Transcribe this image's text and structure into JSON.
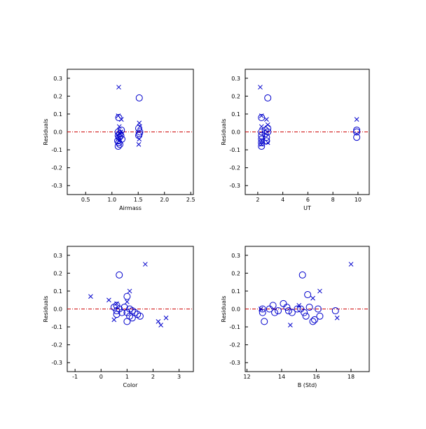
{
  "colors": {
    "marker": "#0000cc",
    "zero_line": "#cc0000",
    "axis": "#000000"
  },
  "chart_data": [
    {
      "type": "scatter",
      "xlabel": "Airmass",
      "ylabel": "Residuals",
      "xlim": [
        0.15,
        2.55
      ],
      "ylim": [
        -0.35,
        0.35
      ],
      "xticks": [
        0.5,
        1.0,
        1.5,
        2.0,
        2.5
      ],
      "xtick_labels": [
        "0.5",
        "1.0",
        "1.5",
        "2.0",
        "2.5"
      ],
      "yticks": [
        -0.3,
        -0.2,
        -0.1,
        0.0,
        0.1,
        0.2,
        0.3
      ],
      "ytick_labels": [
        "-0.3",
        "-0.2",
        "-0.1",
        "0.0",
        "0.1",
        "0.2",
        "0.3"
      ],
      "reference_line_y": 0.0,
      "series": [
        {
          "marker": "circle",
          "points": [
            [
              1.13,
              0.08
            ],
            [
              1.12,
              0.0
            ],
            [
              1.15,
              -0.01
            ],
            [
              1.12,
              -0.02
            ],
            [
              1.14,
              -0.03
            ],
            [
              1.11,
              -0.05
            ],
            [
              1.13,
              -0.06
            ],
            [
              1.15,
              -0.07
            ],
            [
              1.12,
              -0.08
            ],
            [
              1.18,
              0.01
            ],
            [
              1.17,
              -0.02
            ],
            [
              1.19,
              -0.04
            ],
            [
              1.52,
              0.19
            ],
            [
              1.51,
              0.02
            ],
            [
              1.53,
              0.0
            ],
            [
              1.52,
              -0.01
            ],
            [
              1.51,
              -0.02
            ]
          ]
        },
        {
          "marker": "x",
          "points": [
            [
              1.13,
              0.25
            ],
            [
              1.12,
              0.09
            ],
            [
              1.14,
              0.03
            ],
            [
              1.16,
              -0.01
            ],
            [
              1.12,
              -0.03
            ],
            [
              1.13,
              -0.05
            ],
            [
              1.18,
              0.07
            ],
            [
              1.17,
              0.0
            ],
            [
              1.52,
              0.05
            ],
            [
              1.53,
              0.03
            ],
            [
              1.52,
              -0.04
            ],
            [
              1.51,
              -0.07
            ]
          ]
        }
      ]
    },
    {
      "type": "scatter",
      "xlabel": "UT",
      "ylabel": "Residuals",
      "xlim": [
        1.0,
        10.9
      ],
      "ylim": [
        -0.35,
        0.35
      ],
      "xticks": [
        2,
        4,
        6,
        8,
        10
      ],
      "xtick_labels": [
        "2",
        "4",
        "6",
        "8",
        "10"
      ],
      "yticks": [
        -0.3,
        -0.2,
        -0.1,
        0.0,
        0.1,
        0.2,
        0.3
      ],
      "ytick_labels": [
        "-0.3",
        "-0.2",
        "-0.1",
        "0.0",
        "0.1",
        "0.2",
        "0.3"
      ],
      "reference_line_y": 0.0,
      "series": [
        {
          "marker": "circle",
          "points": [
            [
              2.3,
              0.08
            ],
            [
              2.3,
              0.0
            ],
            [
              2.3,
              -0.02
            ],
            [
              2.3,
              -0.04
            ],
            [
              2.3,
              -0.06
            ],
            [
              2.3,
              -0.08
            ],
            [
              2.6,
              0.01
            ],
            [
              2.6,
              -0.01
            ],
            [
              2.7,
              -0.03
            ],
            [
              2.7,
              -0.05
            ],
            [
              2.8,
              0.19
            ],
            [
              2.8,
              0.02
            ],
            [
              2.8,
              0.0
            ],
            [
              9.9,
              0.01
            ],
            [
              9.9,
              0.0
            ],
            [
              9.9,
              -0.03
            ]
          ]
        },
        {
          "marker": "x",
          "points": [
            [
              2.2,
              0.25
            ],
            [
              2.3,
              0.09
            ],
            [
              2.3,
              0.03
            ],
            [
              2.3,
              -0.05
            ],
            [
              2.3,
              -0.07
            ],
            [
              2.7,
              0.07
            ],
            [
              2.8,
              0.04
            ],
            [
              2.8,
              -0.06
            ],
            [
              9.9,
              0.07
            ]
          ]
        }
      ]
    },
    {
      "type": "scatter",
      "xlabel": "Color",
      "ylabel": "Residuals",
      "xlim": [
        -1.3,
        3.55
      ],
      "ylim": [
        -0.35,
        0.35
      ],
      "xticks": [
        -1,
        0,
        1,
        2,
        3
      ],
      "xtick_labels": [
        "-1",
        "0",
        "1",
        "2",
        "3"
      ],
      "yticks": [
        -0.3,
        -0.2,
        -0.1,
        0.0,
        0.1,
        0.2,
        0.3
      ],
      "ytick_labels": [
        "-0.3",
        "-0.2",
        "-0.1",
        "0.0",
        "0.1",
        "0.2",
        "0.3"
      ],
      "reference_line_y": 0.0,
      "series": [
        {
          "marker": "circle",
          "points": [
            [
              0.7,
              0.19
            ],
            [
              0.6,
              0.02
            ],
            [
              0.5,
              0.01
            ],
            [
              0.6,
              -0.01
            ],
            [
              0.7,
              0.0
            ],
            [
              0.8,
              -0.02
            ],
            [
              0.9,
              0.01
            ],
            [
              1.0,
              0.07
            ],
            [
              1.0,
              -0.02
            ],
            [
              1.1,
              -0.04
            ],
            [
              1.0,
              -0.07
            ],
            [
              1.2,
              -0.01
            ],
            [
              1.3,
              -0.02
            ],
            [
              1.2,
              -0.05
            ],
            [
              1.4,
              -0.03
            ],
            [
              1.5,
              -0.04
            ],
            [
              0.6,
              -0.03
            ],
            [
              1.1,
              0.0
            ]
          ]
        },
        {
          "marker": "x",
          "points": [
            [
              -0.4,
              0.07
            ],
            [
              0.3,
              0.05
            ],
            [
              0.5,
              -0.06
            ],
            [
              0.6,
              0.03
            ],
            [
              1.1,
              0.1
            ],
            [
              1.7,
              0.25
            ],
            [
              2.2,
              -0.07
            ],
            [
              2.3,
              -0.09
            ],
            [
              2.5,
              -0.05
            ],
            [
              1.0,
              0.04
            ]
          ]
        }
      ]
    },
    {
      "type": "scatter",
      "xlabel": "B (Std)",
      "ylabel": "Residuals",
      "xlim": [
        11.9,
        19.05
      ],
      "ylim": [
        -0.35,
        0.35
      ],
      "xticks": [
        12,
        14,
        16,
        18
      ],
      "xtick_labels": [
        "12",
        "14",
        "16",
        "18"
      ],
      "yticks": [
        -0.3,
        -0.2,
        -0.1,
        0.0,
        0.1,
        0.2,
        0.3
      ],
      "ytick_labels": [
        "-0.3",
        "-0.2",
        "-0.1",
        "0.0",
        "0.1",
        "0.2",
        "0.3"
      ],
      "reference_line_y": 0.0,
      "series": [
        {
          "marker": "circle",
          "points": [
            [
              12.9,
              0.0
            ],
            [
              12.9,
              -0.02
            ],
            [
              13.0,
              -0.07
            ],
            [
              13.3,
              0.0
            ],
            [
              13.5,
              0.02
            ],
            [
              13.6,
              -0.02
            ],
            [
              13.8,
              -0.01
            ],
            [
              14.1,
              0.03
            ],
            [
              14.3,
              0.01
            ],
            [
              14.4,
              -0.01
            ],
            [
              14.6,
              -0.02
            ],
            [
              14.9,
              0.0
            ],
            [
              15.1,
              0.0
            ],
            [
              15.2,
              0.19
            ],
            [
              15.3,
              -0.02
            ],
            [
              15.4,
              -0.04
            ],
            [
              15.5,
              0.08
            ],
            [
              15.6,
              0.01
            ],
            [
              15.8,
              -0.07
            ],
            [
              15.9,
              -0.06
            ],
            [
              16.1,
              0.0
            ],
            [
              16.2,
              -0.04
            ],
            [
              17.1,
              -0.01
            ]
          ]
        },
        {
          "marker": "x",
          "points": [
            [
              12.8,
              0.0
            ],
            [
              14.5,
              -0.09
            ],
            [
              15.0,
              0.02
            ],
            [
              15.8,
              0.06
            ],
            [
              16.2,
              0.1
            ],
            [
              17.2,
              -0.05
            ],
            [
              18.0,
              0.25
            ]
          ]
        }
      ]
    }
  ]
}
